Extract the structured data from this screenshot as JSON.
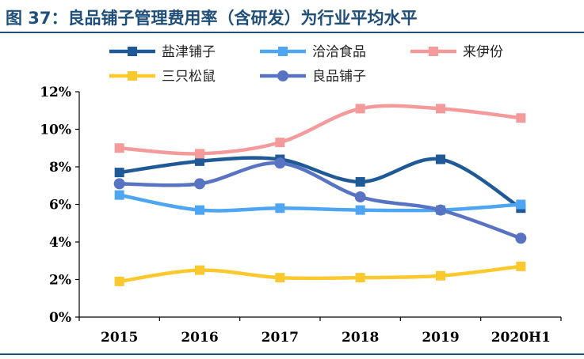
{
  "title": "图 37：良品铺子管理费用率（含研发）为行业平均水平",
  "chart_data": {
    "type": "line",
    "categories": [
      "2015",
      "2016",
      "2017",
      "2018",
      "2019",
      "2020H1"
    ],
    "ylim": [
      0,
      12
    ],
    "yticks": [
      "0%",
      "2%",
      "4%",
      "6%",
      "8%",
      "10%",
      "12%"
    ],
    "grid": false,
    "legend_position": "top",
    "series": [
      {
        "name": "盐津铺子",
        "color": "#1f5a96",
        "marker": "square",
        "values": [
          7.7,
          8.3,
          8.4,
          7.2,
          8.4,
          5.8
        ]
      },
      {
        "name": "洽洽食品",
        "color": "#4ea6f2",
        "marker": "square",
        "values": [
          6.5,
          5.7,
          5.8,
          5.7,
          5.7,
          6.0
        ]
      },
      {
        "name": "来伊份",
        "color": "#f49a9a",
        "marker": "square",
        "values": [
          9.0,
          8.7,
          9.3,
          11.1,
          11.1,
          10.6
        ]
      },
      {
        "name": "三只松鼠",
        "color": "#fbc92e",
        "marker": "square",
        "values": [
          1.9,
          2.5,
          2.1,
          2.1,
          2.2,
          2.7
        ]
      },
      {
        "name": "良品铺子",
        "color": "#5873c2",
        "marker": "circle",
        "values": [
          7.1,
          7.1,
          8.2,
          6.4,
          5.7,
          4.2
        ]
      }
    ]
  }
}
